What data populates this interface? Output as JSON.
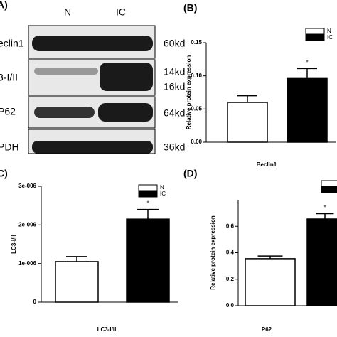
{
  "blot": {
    "panel": "A)",
    "lanes": [
      "N",
      "IC"
    ],
    "rows": [
      "eclin1",
      "3-I/II",
      "P62",
      "PDH"
    ],
    "sizes": [
      "60kd",
      "14kd",
      "16kd",
      "64kd",
      "36kd"
    ]
  },
  "chart_data": [
    {
      "type": "bar",
      "panel": "(B)",
      "ylabel": "Relative protein expression",
      "xlabel": "Beclin1",
      "annotation": "*",
      "ylim": [
        0,
        0.15
      ],
      "yticks": [
        {
          "value": 0,
          "label": "0.00"
        },
        {
          "value": 0.05,
          "label": "0.05"
        },
        {
          "value": 0.1,
          "label": "0.10"
        },
        {
          "value": 0.15,
          "label": "0.15"
        }
      ],
      "series": [
        {
          "name": "N",
          "color": "#ffffff",
          "values": [
            0.06
          ],
          "errors": [
            0.01
          ]
        },
        {
          "name": "IC",
          "color": "#000000",
          "values": [
            0.096
          ],
          "errors": [
            0.015
          ]
        }
      ]
    },
    {
      "type": "bar",
      "panel": "C)",
      "ylabel": "LC3-I/II",
      "xlabel": "LC3-I/II",
      "annotation": "*",
      "ylim": [
        0,
        3e-06
      ],
      "yticks": [
        0,
        {
          "value": 1e-06,
          "label": "1e-006"
        },
        {
          "value": 2e-06,
          "label": "2e-006"
        },
        {
          "value": 3e-06,
          "label": "3e-006"
        }
      ],
      "series": [
        {
          "name": "N",
          "color": "#ffffff",
          "values": [
            1.05e-06
          ],
          "errors": [
            1.3e-07
          ]
        },
        {
          "name": "IC",
          "color": "#000000",
          "values": [
            2.15e-06
          ],
          "errors": [
            2.5e-07
          ]
        }
      ]
    },
    {
      "type": "bar",
      "panel": "(D)",
      "ylabel": "Relative protein expression",
      "xlabel": "P62",
      "annotation": "*",
      "ylim": [
        0,
        0.8
      ],
      "yticks": [
        {
          "value": 0,
          "label": "0.0"
        },
        0.2,
        0.4,
        0.6
      ],
      "series": [
        {
          "color": "#ffffff",
          "values": [
            0.355
          ],
          "errors": [
            0.02
          ]
        },
        {
          "color": "#000000",
          "values": [
            0.655
          ],
          "errors": [
            0.04
          ]
        }
      ]
    }
  ]
}
